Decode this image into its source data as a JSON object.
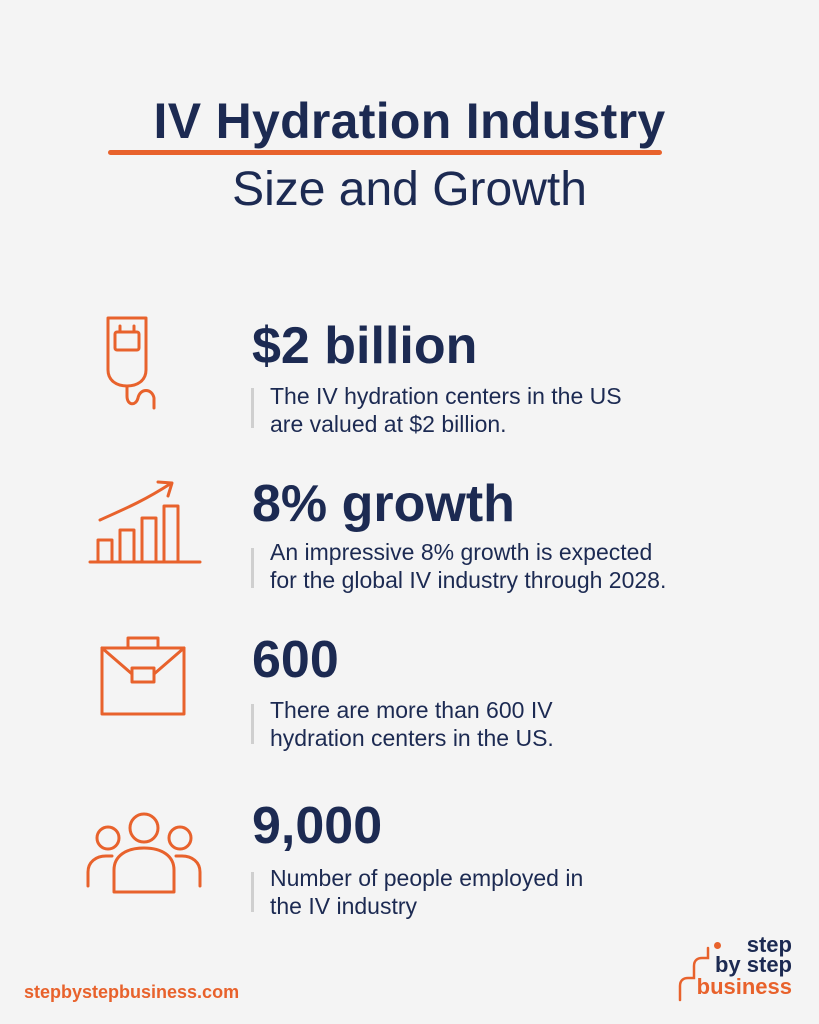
{
  "header": {
    "title": "IV Hydration Industry",
    "subtitle": "Size and Growth"
  },
  "stats": [
    {
      "icon": "iv-bag-icon",
      "value": "$2 billion",
      "line1": "The IV hydration centers in the US",
      "line2": "are valued at $2 billion."
    },
    {
      "icon": "growth-chart-icon",
      "value": "8% growth",
      "line1": "An impressive 8% growth is expected",
      "line2": "for the global IV industry through 2028."
    },
    {
      "icon": "briefcase-icon",
      "value": "600",
      "line1": "There are more than 600 IV",
      "line2": "hydration centers in the US."
    },
    {
      "icon": "people-group-icon",
      "value": "9,000",
      "line1": "Number of people employed in",
      "line2": "the IV industry"
    }
  ],
  "footer": {
    "url": "stepbystepbusiness.com",
    "logo": {
      "line1": "step",
      "line2": "by step",
      "line3": "business"
    }
  },
  "colors": {
    "accent": "#e8622c",
    "text": "#1c2a52",
    "background": "#f4f4f4"
  }
}
